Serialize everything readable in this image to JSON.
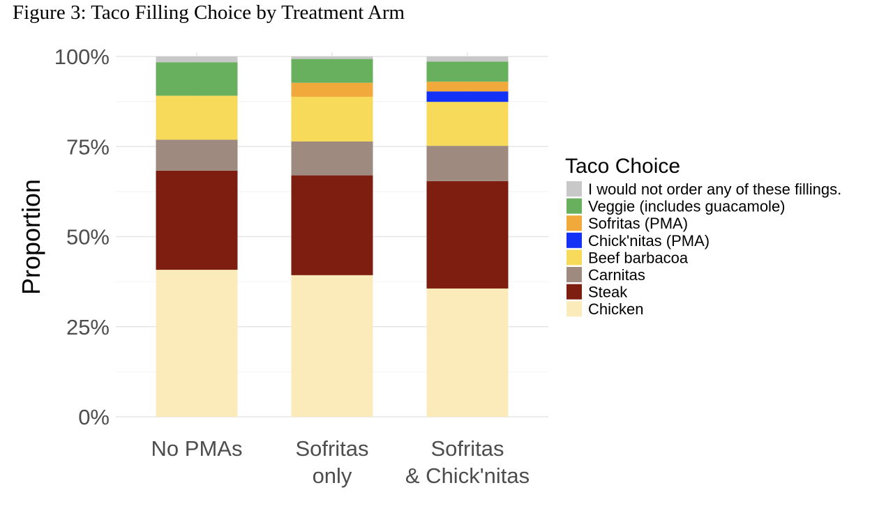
{
  "figure_title": "Figure 3: Taco Filling Choice by Treatment Arm",
  "chart_data": {
    "type": "bar",
    "stacked": true,
    "orientation": "vertical",
    "ylabel": "Proportion",
    "xlabel": "",
    "ylim": [
      0,
      1
    ],
    "y_ticks": [
      {
        "value": 0,
        "label": "0%"
      },
      {
        "value": 0.25,
        "label": "25%"
      },
      {
        "value": 0.5,
        "label": "50%"
      },
      {
        "value": 0.75,
        "label": "75%"
      },
      {
        "value": 1.0,
        "label": "100%"
      }
    ],
    "categories": [
      [
        "No PMAs"
      ],
      [
        "Sofritas",
        "only"
      ],
      [
        "Sofritas",
        "& Chick'nitas"
      ]
    ],
    "grid": true,
    "legend": {
      "title": "Taco Choice",
      "placement": "right",
      "order": [
        "I would not order any of these fillings.",
        "Veggie (includes guacamole)",
        "Sofritas (PMA)",
        "Chick'nitas (PMA)",
        "Beef barbacoa",
        "Carnitas",
        "Steak",
        "Chicken"
      ]
    },
    "series": [
      {
        "name": "Chicken",
        "color": "#FBEBBA",
        "values": [
          0.408,
          0.393,
          0.356
        ]
      },
      {
        "name": "Steak",
        "color": "#7D1E11",
        "values": [
          0.275,
          0.277,
          0.298
        ]
      },
      {
        "name": "Carnitas",
        "color": "#9E8A7F",
        "values": [
          0.086,
          0.094,
          0.098
        ]
      },
      {
        "name": "Beef barbacoa",
        "color": "#F7DA5A",
        "values": [
          0.122,
          0.124,
          0.122
        ]
      },
      {
        "name": "Chick'nitas (PMA)",
        "color": "#1432F5",
        "values": [
          0,
          0,
          0.029
        ]
      },
      {
        "name": "Sofritas (PMA)",
        "color": "#F2A93B",
        "values": [
          0,
          0.039,
          0.027
        ]
      },
      {
        "name": "Veggie (includes guacamole)",
        "color": "#68AF5E",
        "values": [
          0.093,
          0.066,
          0.056
        ]
      },
      {
        "name": "I would not order any of these fillings.",
        "color": "#C8C8C8",
        "values": [
          0.016,
          0.007,
          0.014
        ]
      }
    ]
  }
}
